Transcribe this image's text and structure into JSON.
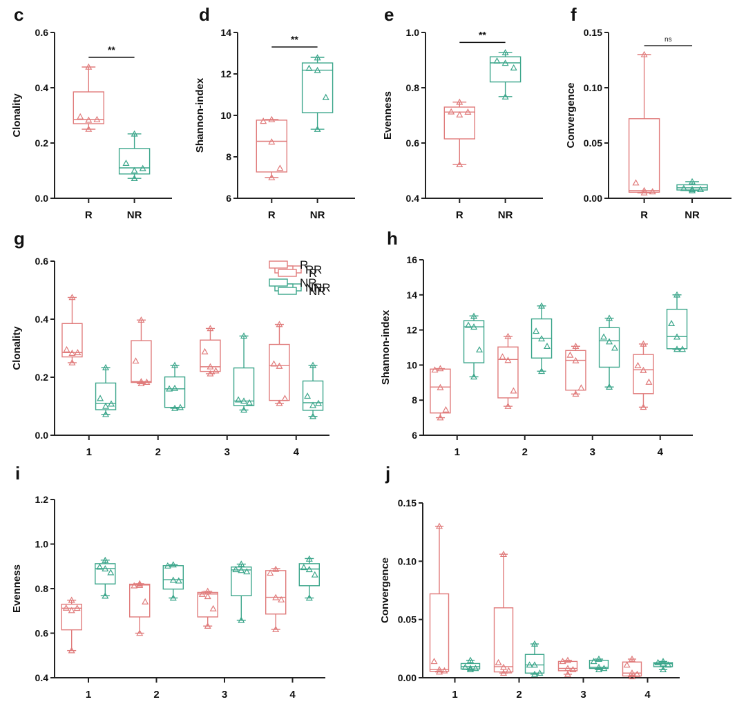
{
  "colors": {
    "R": "#e07b7b",
    "NR": "#3aa58a",
    "axis": "#222222"
  },
  "chart_data": [
    {
      "id": "c",
      "panel_label": "c",
      "type": "box",
      "ylabel": "Clonality",
      "ylim": [
        0,
        0.6
      ],
      "yticks": [
        "0.0",
        "0.2",
        "0.4",
        "0.6"
      ],
      "ytick_values": [
        0,
        0.2,
        0.4,
        0.6
      ],
      "categories": [
        "R",
        "NR"
      ],
      "series": [
        {
          "name": "R",
          "group": 0,
          "min": 0.25,
          "q1": 0.27,
          "median": 0.285,
          "q3": 0.385,
          "max": 0.475,
          "points": [
            0.475,
            0.295,
            0.283,
            0.285,
            0.25
          ]
        },
        {
          "name": "NR",
          "group": 1,
          "min": 0.072,
          "q1": 0.088,
          "median": 0.11,
          "q3": 0.18,
          "max": 0.233,
          "points": [
            0.233,
            0.127,
            0.1,
            0.108,
            0.072
          ]
        }
      ],
      "significance": [
        {
          "from": 0,
          "to": 1,
          "label": "**",
          "y": 0.51
        }
      ]
    },
    {
      "id": "d",
      "panel_label": "d",
      "type": "box",
      "ylabel": "Shannon-index",
      "ylim": [
        6,
        14
      ],
      "yticks": [
        "6",
        "8",
        "10",
        "12",
        "14"
      ],
      "ytick_values": [
        6,
        8,
        10,
        12,
        14
      ],
      "categories": [
        "R",
        "NR"
      ],
      "series": [
        {
          "name": "R",
          "group": 0,
          "min": 7.0,
          "q1": 7.27,
          "median": 8.75,
          "q3": 9.77,
          "max": 9.8,
          "points": [
            9.8,
            9.72,
            8.72,
            7.45,
            7.0
          ]
        },
        {
          "name": "NR",
          "group": 1,
          "min": 9.33,
          "q1": 10.13,
          "median": 12.18,
          "q3": 12.53,
          "max": 12.8,
          "points": [
            12.78,
            12.27,
            12.17,
            10.87,
            9.33
          ]
        }
      ],
      "significance": [
        {
          "from": 0,
          "to": 1,
          "label": "**",
          "y": 13.3
        }
      ]
    },
    {
      "id": "e",
      "panel_label": "e",
      "type": "box",
      "ylabel": "Evenness",
      "ylim": [
        0.4,
        1.0
      ],
      "yticks": [
        "0.4",
        "0.6",
        "0.8",
        "1.0"
      ],
      "ytick_values": [
        0.4,
        0.6,
        0.8,
        1.0
      ],
      "categories": [
        "R",
        "NR"
      ],
      "series": [
        {
          "name": "R",
          "group": 0,
          "min": 0.522,
          "q1": 0.615,
          "median": 0.712,
          "q3": 0.73,
          "max": 0.748,
          "points": [
            0.748,
            0.713,
            0.702,
            0.712,
            0.522
          ]
        },
        {
          "name": "NR",
          "group": 1,
          "min": 0.768,
          "q1": 0.821,
          "median": 0.89,
          "q3": 0.912,
          "max": 0.928,
          "points": [
            0.927,
            0.897,
            0.889,
            0.872,
            0.767
          ]
        }
      ],
      "significance": [
        {
          "from": 0,
          "to": 1,
          "label": "**",
          "y": 0.964
        }
      ]
    },
    {
      "id": "f",
      "panel_label": "f",
      "type": "box",
      "ylabel": "Convergence",
      "ylim": [
        0,
        0.15
      ],
      "yticks": [
        "0.00",
        "0.05",
        "0.10",
        "0.15"
      ],
      "ytick_values": [
        0,
        0.05,
        0.1,
        0.15
      ],
      "categories": [
        "R",
        "NR"
      ],
      "series": [
        {
          "name": "R",
          "group": 0,
          "min": 0.005,
          "q1": 0.0055,
          "median": 0.007,
          "q3": 0.072,
          "max": 0.13,
          "points": [
            0.13,
            0.014,
            0.007,
            0.006,
            0.005
          ]
        },
        {
          "name": "NR",
          "group": 1,
          "min": 0.007,
          "q1": 0.0075,
          "median": 0.0095,
          "q3": 0.0122,
          "max": 0.015,
          "points": [
            0.015,
            0.009,
            0.008,
            0.008,
            0.007
          ]
        }
      ],
      "significance": [
        {
          "from": 0,
          "to": 1,
          "label": "ns",
          "y": 0.138
        }
      ]
    },
    {
      "id": "g",
      "panel_label": "g",
      "type": "box",
      "ylabel": "Clonality",
      "ylim": [
        0,
        0.6
      ],
      "yticks": [
        "0.0",
        "0.2",
        "0.4",
        "0.6"
      ],
      "ytick_values": [
        0,
        0.2,
        0.4,
        0.6
      ],
      "categories": [
        "1",
        "2",
        "3",
        "4"
      ],
      "legend": [
        "R",
        "NR"
      ],
      "legend_position": "top-right",
      "series": [
        {
          "name": "R",
          "group": 0,
          "min": 0.25,
          "q1": 0.27,
          "median": 0.285,
          "q3": 0.385,
          "max": 0.475,
          "points": [
            0.475,
            0.295,
            0.283,
            0.285,
            0.25
          ]
        },
        {
          "name": "NR",
          "group": 0,
          "min": 0.072,
          "q1": 0.088,
          "median": 0.11,
          "q3": 0.18,
          "max": 0.233,
          "points": [
            0.233,
            0.127,
            0.1,
            0.108,
            0.072
          ]
        },
        {
          "name": "R",
          "group": 1,
          "min": 0.178,
          "q1": 0.182,
          "median": 0.185,
          "q3": 0.326,
          "max": 0.397,
          "points": [
            0.397,
            0.256,
            0.185,
            0.183,
            0.178
          ]
        },
        {
          "name": "NR",
          "group": 1,
          "min": 0.093,
          "q1": 0.096,
          "median": 0.16,
          "q3": 0.201,
          "max": 0.241,
          "points": [
            0.241,
            0.16,
            0.162,
            0.096,
            0.093
          ]
        },
        {
          "name": "R",
          "group": 2,
          "min": 0.212,
          "q1": 0.22,
          "median": 0.236,
          "q3": 0.328,
          "max": 0.368,
          "points": [
            0.368,
            0.288,
            0.236,
            0.222,
            0.212
          ]
        },
        {
          "name": "NR",
          "group": 2,
          "min": 0.087,
          "q1": 0.102,
          "median": 0.118,
          "q3": 0.232,
          "max": 0.342,
          "points": [
            0.342,
            0.122,
            0.118,
            0.112,
            0.087
          ]
        },
        {
          "name": "R",
          "group": 3,
          "min": 0.11,
          "q1": 0.12,
          "median": 0.24,
          "q3": 0.313,
          "max": 0.382,
          "points": [
            0.382,
            0.246,
            0.238,
            0.127,
            0.11
          ]
        },
        {
          "name": "NR",
          "group": 3,
          "min": 0.065,
          "q1": 0.086,
          "median": 0.112,
          "q3": 0.187,
          "max": 0.241,
          "points": [
            0.241,
            0.135,
            0.103,
            0.11,
            0.065
          ]
        }
      ]
    },
    {
      "id": "h",
      "panel_label": "h",
      "type": "box",
      "ylabel": "Shannon-index",
      "ylim": [
        6,
        16
      ],
      "yticks": [
        "6",
        "8",
        "10",
        "12",
        "14",
        "16"
      ],
      "ytick_values": [
        6,
        8,
        10,
        12,
        14,
        16
      ],
      "categories": [
        "1",
        "2",
        "3",
        "4"
      ],
      "legend": [
        "R",
        "NR"
      ],
      "legend_position": "top-right",
      "series": [
        {
          "name": "R",
          "group": 0,
          "min": 7.0,
          "q1": 7.27,
          "median": 8.75,
          "q3": 9.77,
          "max": 9.8,
          "points": [
            9.8,
            9.72,
            8.72,
            7.45,
            7.0
          ]
        },
        {
          "name": "NR",
          "group": 0,
          "min": 9.33,
          "q1": 10.13,
          "median": 12.18,
          "q3": 12.53,
          "max": 12.8,
          "points": [
            12.78,
            12.27,
            12.17,
            10.87,
            9.33
          ]
        },
        {
          "name": "R",
          "group": 1,
          "min": 7.65,
          "q1": 8.13,
          "median": 10.32,
          "q3": 11.03,
          "max": 11.63,
          "points": [
            11.63,
            10.47,
            10.27,
            8.53,
            7.65
          ]
        },
        {
          "name": "NR",
          "group": 1,
          "min": 9.65,
          "q1": 10.4,
          "median": 11.53,
          "q3": 12.63,
          "max": 13.37,
          "points": [
            13.37,
            11.93,
            11.5,
            11.07,
            9.65
          ]
        },
        {
          "name": "R",
          "group": 2,
          "min": 8.35,
          "q1": 8.57,
          "median": 10.27,
          "q3": 10.83,
          "max": 11.07,
          "points": [
            11.07,
            10.57,
            10.25,
            8.7,
            8.35
          ]
        },
        {
          "name": "NR",
          "group": 2,
          "min": 8.75,
          "q1": 9.88,
          "median": 11.38,
          "q3": 12.13,
          "max": 12.67,
          "points": [
            12.67,
            11.6,
            11.33,
            10.97,
            8.75
          ]
        },
        {
          "name": "R",
          "group": 3,
          "min": 7.6,
          "q1": 8.37,
          "median": 9.73,
          "q3": 10.6,
          "max": 11.2,
          "points": [
            11.2,
            9.97,
            9.7,
            9.03,
            7.6
          ]
        },
        {
          "name": "NR",
          "group": 3,
          "min": 10.9,
          "q1": 10.93,
          "median": 11.63,
          "q3": 13.18,
          "max": 14.0,
          "points": [
            14.0,
            12.37,
            11.6,
            10.9,
            10.9
          ]
        }
      ]
    },
    {
      "id": "i",
      "panel_label": "i",
      "type": "box",
      "ylabel": "Evenness",
      "ylim": [
        0.4,
        1.2
      ],
      "yticks": [
        "0.4",
        "0.6",
        "0.8",
        "1.0",
        "1.2"
      ],
      "ytick_values": [
        0.4,
        0.6,
        0.8,
        1.0,
        1.2
      ],
      "categories": [
        "1",
        "2",
        "3",
        "4"
      ],
      "legend": [
        "R",
        "NR"
      ],
      "legend_position": "top-right",
      "series": [
        {
          "name": "R",
          "group": 0,
          "min": 0.522,
          "q1": 0.615,
          "median": 0.712,
          "q3": 0.73,
          "max": 0.748,
          "points": [
            0.748,
            0.713,
            0.702,
            0.712,
            0.522
          ]
        },
        {
          "name": "NR",
          "group": 0,
          "min": 0.768,
          "q1": 0.821,
          "median": 0.89,
          "q3": 0.912,
          "max": 0.928,
          "points": [
            0.927,
            0.897,
            0.889,
            0.872,
            0.767
          ]
        },
        {
          "name": "R",
          "group": 1,
          "min": 0.6,
          "q1": 0.673,
          "median": 0.816,
          "q3": 0.82,
          "max": 0.822,
          "points": [
            0.822,
            0.813,
            0.815,
            0.741,
            0.6
          ]
        },
        {
          "name": "NR",
          "group": 1,
          "min": 0.758,
          "q1": 0.798,
          "median": 0.84,
          "q3": 0.903,
          "max": 0.907,
          "points": [
            0.907,
            0.902,
            0.838,
            0.835,
            0.758
          ]
        },
        {
          "name": "R",
          "group": 2,
          "min": 0.632,
          "q1": 0.673,
          "median": 0.776,
          "q3": 0.783,
          "max": 0.788,
          "points": [
            0.788,
            0.775,
            0.765,
            0.71,
            0.632
          ]
        },
        {
          "name": "NR",
          "group": 2,
          "min": 0.658,
          "q1": 0.768,
          "median": 0.884,
          "q3": 0.897,
          "max": 0.91,
          "points": [
            0.91,
            0.886,
            0.882,
            0.876,
            0.658
          ]
        },
        {
          "name": "R",
          "group": 3,
          "min": 0.617,
          "q1": 0.686,
          "median": 0.761,
          "q3": 0.881,
          "max": 0.89,
          "points": [
            0.887,
            0.87,
            0.76,
            0.75,
            0.617
          ]
        },
        {
          "name": "NR",
          "group": 3,
          "min": 0.758,
          "q1": 0.813,
          "median": 0.888,
          "q3": 0.912,
          "max": 0.935,
          "points": [
            0.933,
            0.895,
            0.886,
            0.862,
            0.758
          ]
        }
      ]
    },
    {
      "id": "j",
      "panel_label": "j",
      "type": "box",
      "ylabel": "Convergence",
      "ylim": [
        0,
        0.15
      ],
      "yticks": [
        "0.00",
        "0.05",
        "0.10",
        "0.15"
      ],
      "ytick_values": [
        0,
        0.05,
        0.1,
        0.15
      ],
      "categories": [
        "1",
        "2",
        "3",
        "4"
      ],
      "legend": [
        "R",
        "NR"
      ],
      "legend_position": "top-right",
      "series": [
        {
          "name": "R",
          "group": 0,
          "min": 0.005,
          "q1": 0.0055,
          "median": 0.007,
          "q3": 0.072,
          "max": 0.13,
          "points": [
            0.13,
            0.014,
            0.007,
            0.006,
            0.005
          ]
        },
        {
          "name": "NR",
          "group": 0,
          "min": 0.007,
          "q1": 0.0075,
          "median": 0.0095,
          "q3": 0.0122,
          "max": 0.015,
          "points": [
            0.015,
            0.009,
            0.008,
            0.008,
            0.007
          ]
        },
        {
          "name": "R",
          "group": 1,
          "min": 0.004,
          "q1": 0.005,
          "median": 0.0095,
          "q3": 0.06,
          "max": 0.106,
          "points": [
            0.106,
            0.013,
            0.009,
            0.006,
            0.004
          ]
        },
        {
          "name": "NR",
          "group": 1,
          "min": 0.003,
          "q1": 0.004,
          "median": 0.011,
          "q3": 0.02,
          "max": 0.029,
          "points": [
            0.029,
            0.011,
            0.011,
            0.004,
            0.003
          ]
        },
        {
          "name": "R",
          "group": 2,
          "min": 0.003,
          "q1": 0.006,
          "median": 0.008,
          "q3": 0.014,
          "max": 0.015,
          "points": [
            0.015,
            0.014,
            0.008,
            0.007,
            0.003
          ]
        },
        {
          "name": "NR",
          "group": 2,
          "min": 0.007,
          "q1": 0.008,
          "median": 0.009,
          "q3": 0.015,
          "max": 0.016,
          "points": [
            0.016,
            0.014,
            0.009,
            0.008,
            0.007
          ]
        },
        {
          "name": "R",
          "group": 3,
          "min": 0.001,
          "q1": 0.0015,
          "median": 0.004,
          "q3": 0.0135,
          "max": 0.016,
          "points": [
            0.016,
            0.011,
            0.004,
            0.003,
            0.001
          ]
        },
        {
          "name": "NR",
          "group": 3,
          "min": 0.007,
          "q1": 0.0095,
          "median": 0.012,
          "q3": 0.013,
          "max": 0.014,
          "points": [
            0.014,
            0.013,
            0.012,
            0.011,
            0.007
          ]
        }
      ]
    }
  ]
}
